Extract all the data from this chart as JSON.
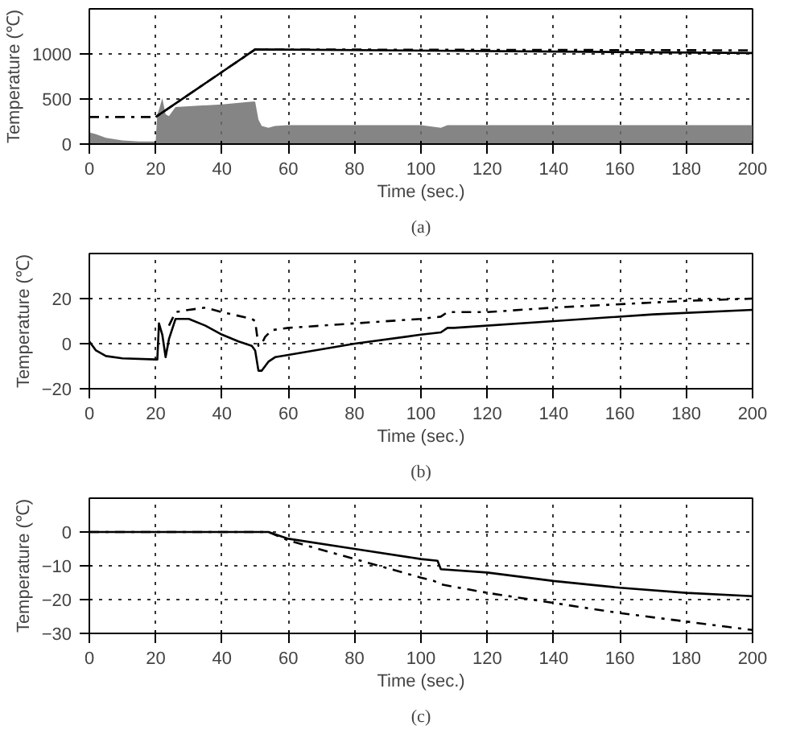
{
  "chart_data": [
    {
      "type": "line",
      "xlabel": "Time (sec.)",
      "ylabel": "Temperature (℃)",
      "annotations": [
        "(a)"
      ],
      "xlim": [
        0,
        200
      ],
      "ylim": [
        0,
        1500
      ],
      "xticks": [
        0,
        20,
        40,
        60,
        80,
        100,
        120,
        140,
        160,
        180,
        200
      ],
      "yticks": [
        0,
        500,
        1000
      ],
      "grid": true,
      "series": [
        {
          "type": "area",
          "color": "#707070",
          "x": [
            0,
            2,
            5,
            10,
            15,
            20,
            20.5,
            21,
            22,
            23,
            24,
            26,
            30,
            40,
            49,
            50,
            51,
            52,
            54,
            56,
            60,
            100,
            106,
            108,
            150,
            200
          ],
          "values": [
            130,
            110,
            70,
            40,
            30,
            30,
            330,
            380,
            510,
            330,
            310,
            410,
            420,
            440,
            470,
            470,
            270,
            200,
            180,
            200,
            210,
            210,
            180,
            210,
            210,
            210
          ]
        },
        {
          "color": "#000000",
          "line_style": "dashdot",
          "x": [
            0,
            20,
            50,
            200
          ],
          "values": [
            300,
            300,
            1050,
            1040
          ]
        },
        {
          "color": "#000000",
          "line_style": "solid",
          "x": [
            20,
            50,
            200
          ],
          "values": [
            300,
            1050,
            1010
          ]
        }
      ]
    },
    {
      "type": "line",
      "xlabel": "Time (sec.)",
      "ylabel": "Temperature (℃)",
      "annotations": [
        "(b)"
      ],
      "xlim": [
        0,
        200
      ],
      "ylim": [
        -20,
        40
      ],
      "xticks": [
        0,
        20,
        40,
        60,
        80,
        100,
        120,
        140,
        160,
        180,
        200
      ],
      "yticks": [
        -20,
        0,
        20
      ],
      "grid": true,
      "series": [
        {
          "color": "#000000",
          "line_style": "solid",
          "x": [
            0,
            2,
            5,
            10,
            20,
            20.5,
            21,
            22,
            23,
            24,
            26,
            30,
            35,
            40,
            45,
            49,
            50,
            51,
            52,
            54,
            56,
            60,
            80,
            100,
            106,
            108,
            110,
            140,
            170,
            200
          ],
          "values": [
            1,
            -3,
            -5.5,
            -6.5,
            -7,
            -7,
            9,
            4,
            -6,
            2,
            11,
            11,
            8,
            4,
            1,
            -1,
            -3,
            -12,
            -12,
            -8,
            -6,
            -5,
            0,
            4,
            5,
            7,
            7,
            10,
            13,
            15
          ]
        },
        {
          "color": "#000000",
          "line_style": "dashdot",
          "x": [
            24,
            26,
            30,
            35,
            40,
            49,
            50,
            51,
            52,
            53,
            55,
            60,
            80,
            100,
            106,
            108,
            120,
            140,
            180,
            200
          ],
          "values": [
            8,
            14,
            15,
            16,
            14,
            11,
            10,
            -1,
            0,
            3,
            6,
            7,
            9,
            11,
            12,
            14,
            14,
            16,
            19,
            20
          ]
        }
      ]
    },
    {
      "type": "line",
      "xlabel": "Time (sec.)",
      "ylabel": "Temperature (℃)",
      "annotations": [
        "(c)"
      ],
      "xlim": [
        0,
        200
      ],
      "ylim": [
        -30,
        10
      ],
      "xticks": [
        0,
        20,
        40,
        60,
        80,
        100,
        120,
        140,
        160,
        180,
        200
      ],
      "yticks": [
        -30,
        -20,
        -10,
        0
      ],
      "grid": true,
      "series": [
        {
          "color": "#000000",
          "line_style": "solid",
          "x": [
            0,
            54,
            60,
            80,
            100,
            105,
            106,
            120,
            140,
            160,
            180,
            200
          ],
          "values": [
            0,
            0,
            -2,
            -5,
            -8,
            -8.5,
            -11,
            -12,
            -14.5,
            -16.5,
            -18,
            -19
          ]
        },
        {
          "color": "#000000",
          "line_style": "dashdot",
          "x": [
            0,
            54,
            60,
            80,
            100,
            104,
            106,
            120,
            140,
            160,
            180,
            200
          ],
          "values": [
            0,
            0,
            -2.5,
            -8,
            -13.5,
            -14.5,
            -15.5,
            -18,
            -21,
            -24,
            -26.5,
            -29
          ]
        }
      ]
    }
  ]
}
